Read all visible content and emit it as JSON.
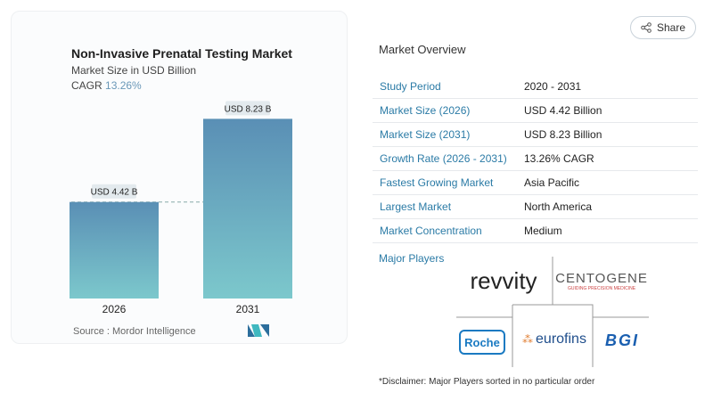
{
  "chart": {
    "title": "Non-Invasive Prenatal Testing Market",
    "subtitle": "Market Size in USD Billion",
    "cagr_label": "CAGR",
    "cagr_value": "13.26%",
    "source": "Source :  Mordor Intelligence"
  },
  "chart_data": {
    "type": "bar",
    "title": "Non-Invasive Prenatal Testing Market",
    "ylabel": "Market Size in USD Billion",
    "categories": [
      "2026",
      "2031"
    ],
    "values": [
      4.42,
      8.23
    ],
    "data_labels": [
      "USD 4.42 B",
      "USD 8.23 B"
    ],
    "colors": [
      "#5a8fb5",
      "#7cc8cc"
    ],
    "grid": false,
    "reference_line": 4.42
  },
  "share": {
    "label": "Share",
    "icon": "share-icon"
  },
  "overview": {
    "title": "Market Overview",
    "rows": [
      {
        "k": "Study Period",
        "v": "2020 - 2031"
      },
      {
        "k": "Market Size (2026)",
        "v": "USD 4.42 Billion"
      },
      {
        "k": "Market Size (2031)",
        "v": "USD 8.23 Billion"
      },
      {
        "k": "Growth Rate (2026 - 2031)",
        "v": "13.26% CAGR"
      },
      {
        "k": "Fastest Growing Market",
        "v": "Asia Pacific"
      },
      {
        "k": "Largest Market",
        "v": "North America"
      },
      {
        "k": "Market Concentration",
        "v": "Medium"
      }
    ]
  },
  "players": {
    "title": "Major Players",
    "logos": [
      "revvity",
      "CENTOGENE",
      "GUIDING PRECISION MEDICINE",
      "Roche",
      "eurofins",
      "BGI"
    ]
  },
  "disclaimer": "*Disclaimer: Major Players sorted in no particular order"
}
